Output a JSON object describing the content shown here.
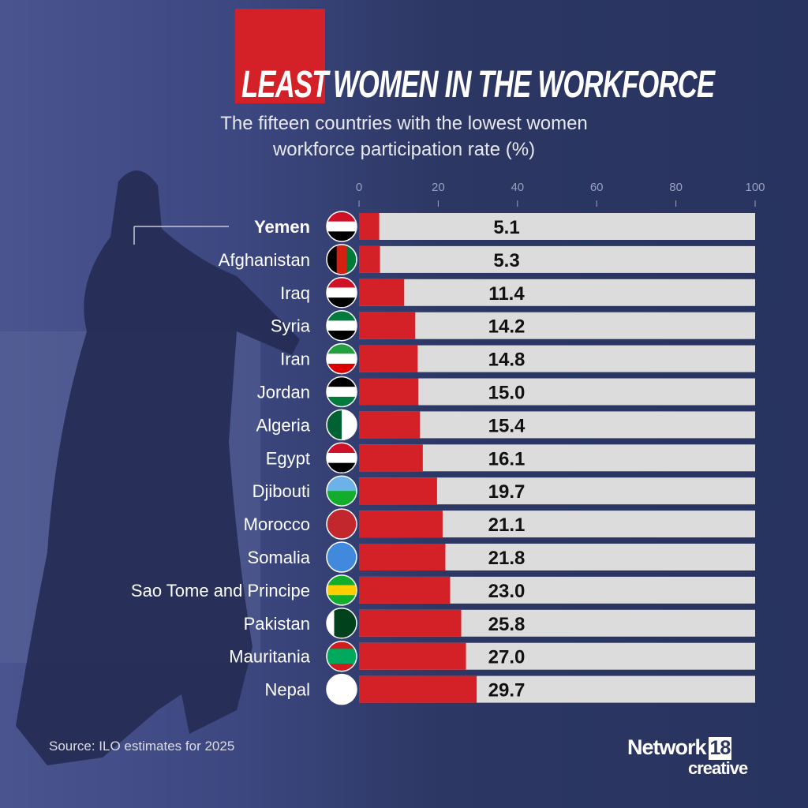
{
  "header": {
    "title_highlight": "LEAST",
    "title_rest": "WOMEN IN THE WORKFORCE",
    "subtitle_line1": "The fifteen countries with the lowest women",
    "subtitle_line2": "workforce participation rate (%)"
  },
  "chart_data": {
    "type": "bar",
    "orientation": "horizontal",
    "title": "LEAST WOMEN IN THE WORKFORCE",
    "subtitle": "The fifteen countries with the lowest women workforce participation rate (%)",
    "categories": [
      "Yemen",
      "Afghanistan",
      "Iraq",
      "Syria",
      "Iran",
      "Jordan",
      "Algeria",
      "Egypt",
      "Djibouti",
      "Morocco",
      "Somalia",
      "Sao Tome and Principe",
      "Pakistan",
      "Mauritania",
      "Nepal"
    ],
    "values": [
      5.1,
      5.3,
      11.4,
      14.2,
      14.8,
      15.0,
      15.4,
      16.1,
      19.7,
      21.1,
      21.8,
      23.0,
      25.8,
      27.0,
      29.7
    ],
    "value_labels": [
      "5.1",
      "5.3",
      "11.4",
      "14.2",
      "14.8",
      "15.0",
      "15.4",
      "16.1",
      "19.7",
      "21.1",
      "21.8",
      "23.0",
      "25.8",
      "27.0",
      "29.7"
    ],
    "xlim": [
      0,
      100
    ],
    "xticks": [
      0,
      20,
      40,
      60,
      80,
      100
    ],
    "highlighted": "Yemen",
    "bar_color": "#d42027",
    "track_color": "#dcdcdc",
    "flag_icons": [
      "yemen-flag",
      "afghanistan-flag",
      "iraq-flag",
      "syria-flag",
      "iran-flag",
      "jordan-flag",
      "algeria-flag",
      "egypt-flag",
      "djibouti-flag",
      "morocco-flag",
      "somalia-flag",
      "sao-tome-flag",
      "pakistan-flag",
      "mauritania-flag",
      "nepal-flag"
    ]
  },
  "footer": {
    "source": "Source: ILO estimates for 2025",
    "logo_word": "Network",
    "logo_num": "18",
    "logo_sub": "creative"
  },
  "colors": {
    "background": "#2a3560",
    "accent": "#d42027"
  }
}
